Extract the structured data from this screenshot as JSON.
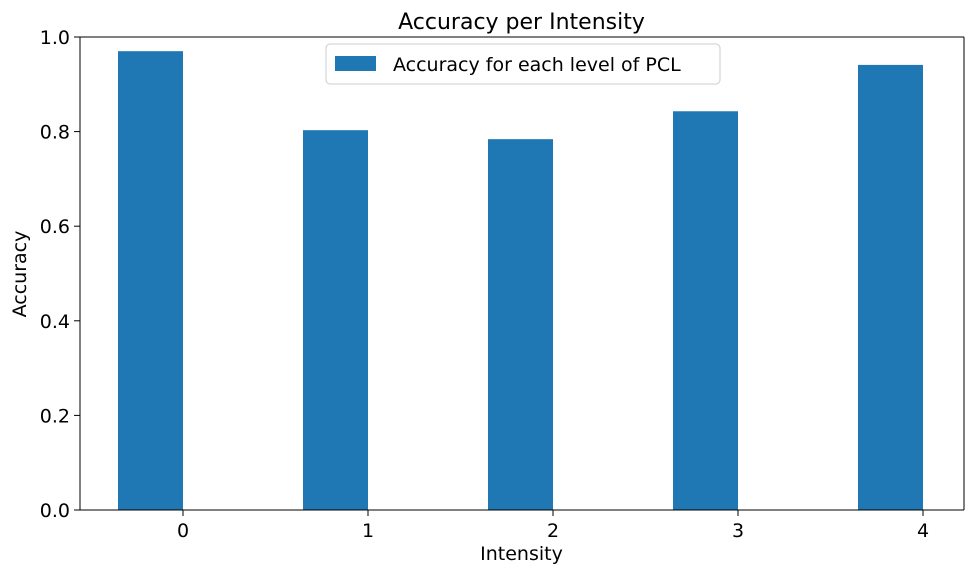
{
  "chart_data": {
    "type": "bar",
    "title": "Accuracy per Intensity",
    "xlabel": "Intensity",
    "ylabel": "Accuracy",
    "categories": [
      "0",
      "1",
      "2",
      "3",
      "4"
    ],
    "series": [
      {
        "name": "Accuracy for each level of PCL",
        "values": [
          0.97,
          0.803,
          0.784,
          0.843,
          0.941
        ]
      }
    ],
    "ylim": [
      0,
      1.0
    ],
    "yticks": [
      "0.0",
      "0.2",
      "0.4",
      "0.6",
      "0.8",
      "1.0"
    ],
    "grid": false,
    "legend_position": "top-center",
    "colors": {
      "bar": "#1f77b4",
      "axis": "#000000"
    }
  }
}
